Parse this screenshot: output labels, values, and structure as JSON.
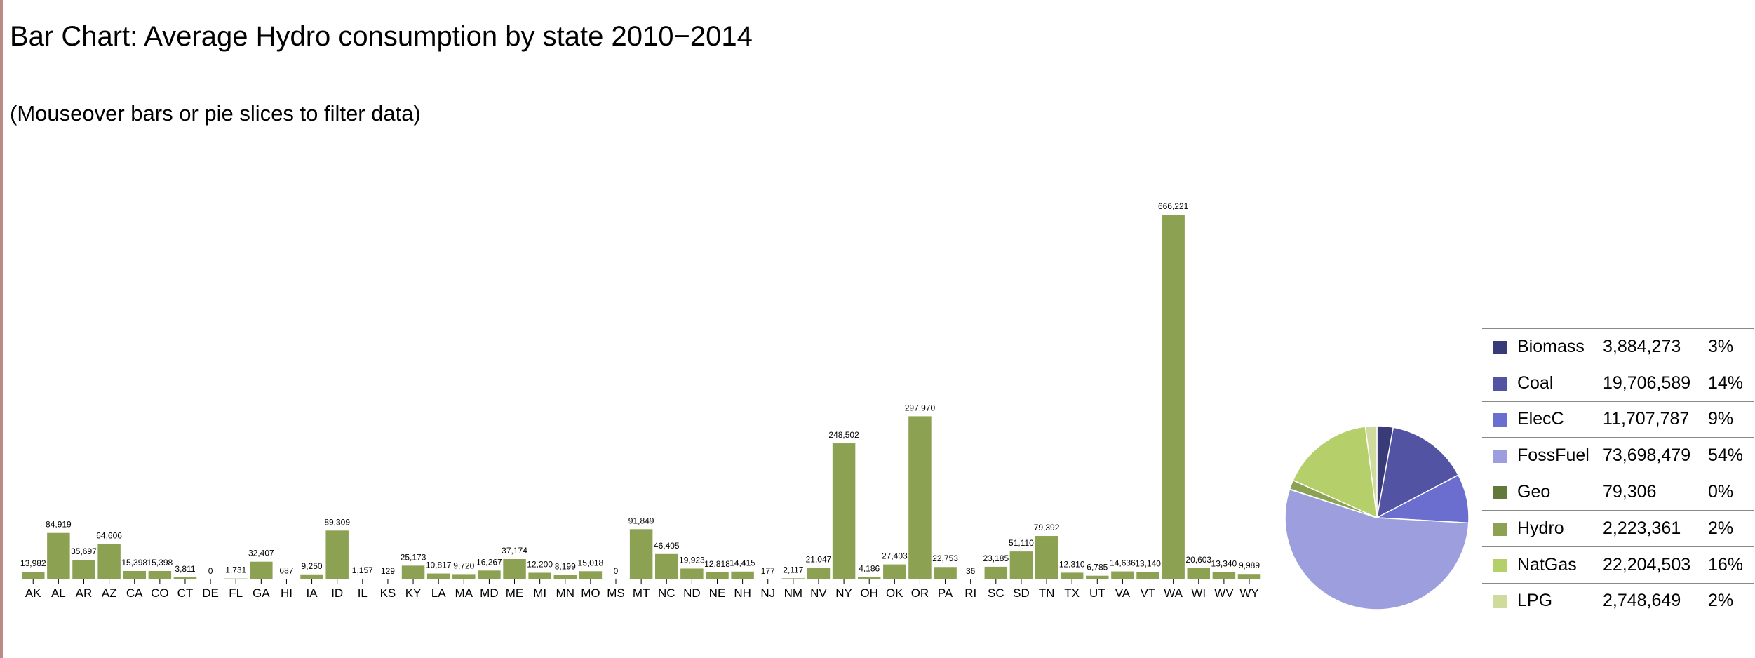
{
  "title": "Bar Chart: Average Hydro consumption by state 2010−2014",
  "subtitle": "(Mouseover bars or pie slices to filter data)",
  "colors": {
    "bar": "#8ca252",
    "Biomass": "#393b79",
    "Coal": "#5254a3",
    "ElecC": "#6b6ecf",
    "FossFuel": "#9c9ede",
    "Geo": "#637939",
    "Hydro": "#8ca252",
    "NatGas": "#b5cf6b",
    "LPG": "#cedb9c"
  },
  "chart_data": [
    {
      "type": "bar",
      "categories": [
        "AK",
        "AL",
        "AR",
        "AZ",
        "CA",
        "CO",
        "CT",
        "DE",
        "FL",
        "GA",
        "HI",
        "IA",
        "ID",
        "IL",
        "KS",
        "KY",
        "LA",
        "MA",
        "MD",
        "ME",
        "MI",
        "MN",
        "MO",
        "MS",
        "MT",
        "NC",
        "ND",
        "NE",
        "NH",
        "NJ",
        "NM",
        "NV",
        "NY",
        "OH",
        "OK",
        "OR",
        "PA",
        "RI",
        "SC",
        "SD",
        "TN",
        "TX",
        "UT",
        "VA",
        "VT",
        "WA",
        "WI",
        "WV",
        "WY"
      ],
      "values": [
        13982,
        84919,
        35697,
        64606,
        15398,
        15398,
        3811,
        0,
        1731,
        32407,
        687,
        9250,
        89309,
        1157,
        129,
        25173,
        10817,
        9720,
        16267,
        37174,
        12200,
        8199,
        15018,
        0,
        91849,
        46405,
        19923,
        12818,
        14415,
        177,
        2117,
        21047,
        248502,
        4186,
        27403,
        297970,
        22753,
        36,
        23185,
        51110,
        79392,
        12310,
        6785,
        14636,
        13140,
        666221,
        20603,
        13340,
        9989
      ],
      "labels": [
        "13,982",
        "84,919",
        "35,697",
        "64,606",
        "15,398",
        "15,398",
        "3,811",
        "0",
        "1,731",
        "32,407",
        "687",
        "9,250",
        "89,309",
        "1,157",
        "129",
        "25,173",
        "10,817",
        "9,720",
        "16,267",
        "37,174",
        "12,200",
        "8,199",
        "15,018",
        "0",
        "91,849",
        "46,405",
        "19,923",
        "12,818",
        "14,415",
        "177",
        "2,117",
        "21,047",
        "248,502",
        "4,186",
        "27,403",
        "297,970",
        "22,753",
        "36",
        "23,185",
        "51,110",
        "79,392",
        "12,310",
        "6,785",
        "14,636",
        "13,140",
        "666,221",
        "20,603",
        "13,340",
        "9,989"
      ],
      "title": "Bar Chart: Average Hydro consumption by state 2010−2014",
      "xlabel": "",
      "ylabel": "",
      "ylim": [
        0,
        666221
      ]
    },
    {
      "type": "pie",
      "categories": [
        "Biomass",
        "Coal",
        "ElecC",
        "FossFuel",
        "Geo",
        "Hydro",
        "NatGas",
        "LPG"
      ],
      "values": [
        3884273,
        19706589,
        11707787,
        73698479,
        79306,
        2223361,
        22204503,
        2748649
      ]
    }
  ],
  "legend": [
    {
      "name": "Biomass",
      "value": "3,884,273",
      "pct": "3%"
    },
    {
      "name": "Coal",
      "value": "19,706,589",
      "pct": "14%"
    },
    {
      "name": "ElecC",
      "value": "11,707,787",
      "pct": "9%"
    },
    {
      "name": "FossFuel",
      "value": "73,698,479",
      "pct": "54%"
    },
    {
      "name": "Geo",
      "value": "79,306",
      "pct": "0%"
    },
    {
      "name": "Hydro",
      "value": "2,223,361",
      "pct": "2%"
    },
    {
      "name": "NatGas",
      "value": "22,204,503",
      "pct": "16%"
    },
    {
      "name": "LPG",
      "value": "2,748,649",
      "pct": "2%"
    }
  ]
}
